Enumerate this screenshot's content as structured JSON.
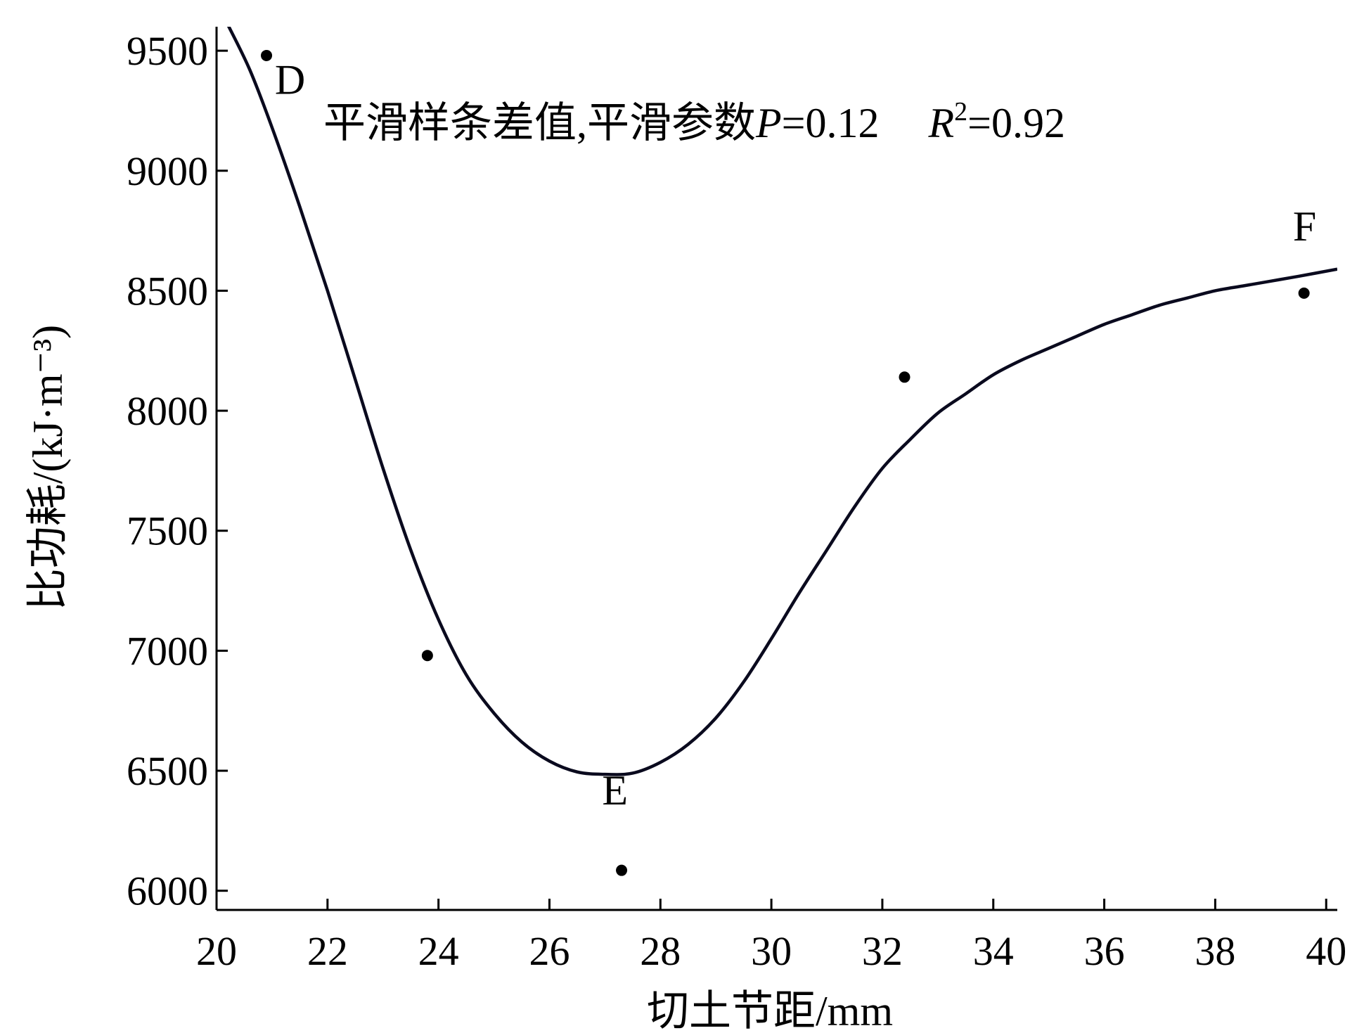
{
  "chart_data": {
    "type": "scatter",
    "xlabel": "切土节距/mm",
    "ylabel": "比功耗/(kJ·m⁻³)",
    "annotation": {
      "method": "平滑样条差值,平滑参数",
      "p_symbol": "P",
      "p_value": "=0.12",
      "r_symbol": "R",
      "r_exp": "2",
      "r_value": "=0.92"
    },
    "xlim": [
      20,
      40.2
    ],
    "ylim": [
      5920,
      9600
    ],
    "x_ticks": [
      20,
      22,
      24,
      26,
      28,
      30,
      32,
      34,
      36,
      38,
      40
    ],
    "y_ticks": [
      6000,
      6500,
      7000,
      7500,
      8000,
      8500,
      9000,
      9500
    ],
    "points": [
      {
        "x": 20.9,
        "y": 9480
      },
      {
        "x": 23.8,
        "y": 6980
      },
      {
        "x": 27.3,
        "y": 6085
      },
      {
        "x": 32.4,
        "y": 8140
      },
      {
        "x": 39.6,
        "y": 8490
      }
    ],
    "point_labels": [
      {
        "text": "D",
        "x": 21.05,
        "y": 9320
      },
      {
        "text": "E",
        "x": 26.95,
        "y": 6360
      },
      {
        "text": "F",
        "x": 39.4,
        "y": 8710
      }
    ],
    "fit_curve": {
      "x": [
        20.2,
        20.6,
        21.0,
        21.5,
        22.0,
        22.5,
        23.0,
        23.5,
        24.0,
        24.5,
        25.0,
        25.5,
        26.0,
        26.5,
        27.0,
        27.5,
        28.0,
        28.5,
        29.0,
        29.5,
        30.0,
        30.5,
        31.0,
        31.5,
        32.0,
        32.5,
        33.0,
        33.5,
        34.0,
        34.5,
        35.0,
        35.5,
        36.0,
        36.5,
        37.0,
        37.5,
        38.0,
        38.5,
        39.0,
        39.5,
        40.2
      ],
      "y": [
        9610,
        9420,
        9180,
        8850,
        8500,
        8130,
        7760,
        7420,
        7130,
        6900,
        6740,
        6620,
        6540,
        6495,
        6485,
        6490,
        6535,
        6610,
        6720,
        6870,
        7050,
        7240,
        7420,
        7600,
        7760,
        7880,
        7990,
        8070,
        8150,
        8210,
        8260,
        8310,
        8360,
        8400,
        8440,
        8470,
        8500,
        8520,
        8540,
        8560,
        8590
      ]
    }
  }
}
